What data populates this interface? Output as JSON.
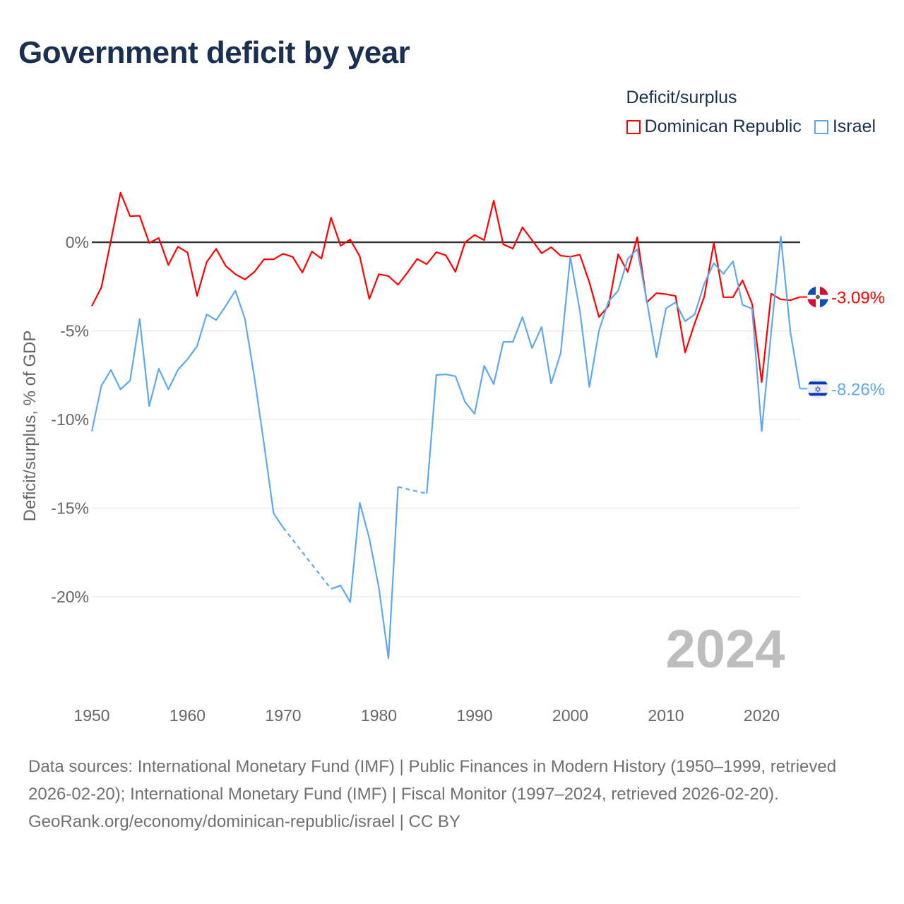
{
  "title": "Government deficit by year",
  "legend": {
    "title": "Deficit/surplus",
    "items": [
      "Dominican Republic",
      "Israel"
    ]
  },
  "year_watermark": "2024",
  "footer": {
    "sources": "Data sources: International Monetary Fund (IMF) | Public Finances in Modern History (1950–1999, retrieved 2026-02-20); International Monetary Fund (IMF) | Fiscal Monitor (1997–2024, retrieved 2026-02-20).",
    "credit": "GeoRank.org/economy/dominican-republic/israel | CC BY"
  },
  "colors": {
    "dominican_republic": "#ff0000",
    "israel": "#5ea8ee",
    "zero_line": "#333333",
    "grid": "#e6e6e6"
  },
  "chart_data": {
    "type": "line",
    "title": "Government deficit by year",
    "xlabel": "",
    "ylabel": "Deficit/surplus, % of GDP",
    "xlim": [
      1950,
      2024
    ],
    "ylim": [
      -24,
      3
    ],
    "x_ticks": [
      "1950",
      "1960",
      "1970",
      "1980",
      "1990",
      "2000",
      "2010",
      "2020"
    ],
    "y_ticks": [
      {
        "v": 0,
        "label": "0%"
      },
      {
        "v": -5,
        "label": "-5%"
      },
      {
        "v": -10,
        "label": "-10%"
      },
      {
        "v": -15,
        "label": "-15%"
      },
      {
        "v": -20,
        "label": "-20%"
      }
    ],
    "grid": true,
    "legend_position": "top-right",
    "start_year": 1950,
    "series": [
      {
        "name": "Dominican Republic",
        "color": "#ff0000",
        "end_label": "-3.09%",
        "flag": "dominican-republic",
        "values": [
          -3.6,
          -2.55,
          0.1,
          2.8,
          1.47,
          1.5,
          -0.04,
          0.24,
          -1.28,
          -0.25,
          -0.58,
          -3.03,
          -1.12,
          -0.37,
          -1.34,
          -1.8,
          -2.1,
          -1.67,
          -0.96,
          -0.96,
          -0.65,
          -0.83,
          -1.71,
          -0.52,
          -0.92,
          1.39,
          -0.2,
          0.16,
          -0.8,
          -3.2,
          -1.8,
          -1.91,
          -2.4,
          -1.7,
          -0.94,
          -1.24,
          -0.56,
          -0.74,
          -1.67,
          -0.01,
          0.41,
          0.12,
          2.35,
          -0.12,
          -0.36,
          0.84,
          0.12,
          -0.62,
          -0.28,
          -0.76,
          -0.82,
          -0.7,
          -2.27,
          -4.22,
          -3.59,
          -0.68,
          -1.67,
          0.28,
          -3.39,
          -2.87,
          -2.93,
          -3.03,
          -6.22,
          -4.58,
          -3.07,
          -0.04,
          -3.1,
          -3.1,
          -2.15,
          -3.47,
          -7.89,
          -2.9,
          -3.23,
          -3.27,
          -3.09
        ]
      },
      {
        "name": "Israel",
        "color": "#5ea8ee",
        "end_label": "-8.26%",
        "flag": "israel",
        "values": [
          -10.67,
          -8.1,
          -7.2,
          -8.3,
          -7.8,
          -4.33,
          -9.25,
          -7.13,
          -8.3,
          -7.2,
          -6.6,
          -5.86,
          -4.07,
          -4.39,
          -3.59,
          -2.73,
          -4.33,
          -7.65,
          -11.4,
          -15.3,
          -16.1,
          null,
          null,
          null,
          null,
          -19.56,
          -19.36,
          -20.3,
          -14.7,
          -16.7,
          -19.5,
          -23.47,
          -13.8,
          null,
          null,
          -14.18,
          -7.49,
          -7.45,
          -7.56,
          -9.0,
          -9.68,
          -6.97,
          -8.0,
          -5.62,
          -5.62,
          -4.22,
          -5.98,
          -4.78,
          -7.97,
          -6.25,
          -0.83,
          -3.86,
          -8.17,
          -4.98,
          -3.33,
          -2.74,
          -0.94,
          -0.39,
          -3.33,
          -6.49,
          -3.73,
          -3.39,
          -4.46,
          -4.07,
          -2.34,
          -1.18,
          -1.78,
          -1.08,
          -3.53,
          -3.75,
          -10.66,
          -5.0,
          0.32,
          -5.06,
          -8.26
        ]
      }
    ]
  }
}
